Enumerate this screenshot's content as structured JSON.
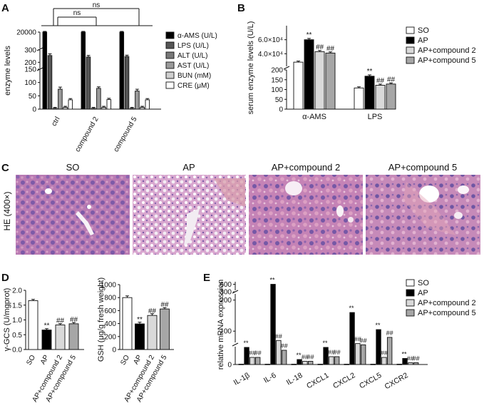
{
  "colors": {
    "so": "#ffffff",
    "ap": "#000000",
    "ap_c2": "#d9d9d9",
    "ap_c5": "#a6a6a6",
    "alt": "#777777",
    "ast": "#9a9a9a",
    "bun": "#cfcfcf",
    "he_base": "#c58ab8",
    "he_dark": "#6a4a98"
  },
  "chart_data": [
    {
      "panel": "A",
      "type": "bar",
      "ylabel": "enzyme levels",
      "categories": [
        "ctrl",
        "compound 2",
        "compound 5"
      ],
      "axis_segments": [
        {
          "range": [
            0,
            150
          ],
          "ticks": [
            "0",
            "50",
            "100",
            "150"
          ]
        },
        {
          "range": [
            150,
            300
          ],
          "ticks": [
            "200",
            "300"
          ]
        },
        {
          "range": [
            300,
            20000
          ],
          "ticks": [
            "20000"
          ]
        }
      ],
      "series": [
        {
          "name": "α-AMS (U/L)",
          "color": "#000000",
          "values": [
            20000,
            20000,
            20000
          ],
          "errors": [
            500,
            500,
            500
          ]
        },
        {
          "name": "LPS (U/L)",
          "color": "#555555",
          "values": [
            255,
            243,
            247
          ],
          "errors": [
            8,
            7,
            5
          ]
        },
        {
          "name": "ALT (U/L)",
          "color": "#777777",
          "values": [
            3,
            3,
            3
          ],
          "errors": [
            1,
            1,
            1
          ]
        },
        {
          "name": "AST (U/L)",
          "color": "#9a9a9a",
          "values": [
            75,
            78,
            68
          ],
          "errors": [
            5,
            3,
            4
          ]
        },
        {
          "name": "BUN (mM)",
          "color": "#cfcfcf",
          "values": [
            7,
            7,
            7
          ],
          "errors": [
            1,
            1,
            1
          ]
        },
        {
          "name": "CRE (μM)",
          "color": "#ffffff",
          "values": [
            35,
            36,
            35
          ],
          "errors": [
            2,
            2,
            2
          ]
        }
      ],
      "significance": [
        {
          "label": "ns",
          "from": "ctrl",
          "to": "compound 2"
        },
        {
          "label": "ns",
          "from": "ctrl",
          "to": "compound 5"
        }
      ]
    },
    {
      "panel": "B",
      "type": "bar",
      "ylabel": "serum enzyme levels (U/L)",
      "categories": [
        "α-AMS",
        "LPS"
      ],
      "axis_segments": [
        {
          "range": [
            0,
            200
          ],
          "ticks": [
            "0",
            "50",
            "100",
            "150",
            "200"
          ]
        },
        {
          "range": [
            20000,
            80000
          ],
          "ticks": [
            "4.0×10⁴",
            "6.0×10⁴"
          ]
        }
      ],
      "series": [
        {
          "name": "SO",
          "color": "#ffffff",
          "values": [
            28000,
            108
          ],
          "errors": [
            500,
            2
          ]
        },
        {
          "name": "AP",
          "color": "#000000",
          "values": [
            60000,
            168
          ],
          "errors": [
            800,
            3
          ],
          "marks": [
            "**",
            "**"
          ]
        },
        {
          "name": "AP+compound 2",
          "color": "#d9d9d9",
          "values": [
            43000,
            122
          ],
          "errors": [
            600,
            2
          ],
          "marks": [
            "##",
            "##"
          ]
        },
        {
          "name": "AP+compound 5",
          "color": "#a6a6a6",
          "values": [
            41000,
            128
          ],
          "errors": [
            600,
            2
          ],
          "marks": [
            "##",
            "##"
          ]
        }
      ]
    },
    {
      "panel": "D-left",
      "type": "bar",
      "ylabel": "γ-GCS (U/mgprot)",
      "ylim": [
        0,
        2.0
      ],
      "ticks": [
        "0.0",
        "0.5",
        "1.0",
        "1.5",
        "2.0"
      ],
      "categories": [
        "SO",
        "AP",
        "AP+compound 2",
        "AP+compound 5"
      ],
      "values": [
        1.65,
        0.66,
        0.83,
        0.87
      ],
      "errors": [
        0.02,
        0.02,
        0.02,
        0.02
      ],
      "colors": [
        "#ffffff",
        "#000000",
        "#d9d9d9",
        "#a6a6a6"
      ],
      "marks": [
        "",
        "**",
        "##",
        "##"
      ]
    },
    {
      "panel": "D-right",
      "type": "bar",
      "ylabel": "GSH (μg/g fresh weight)",
      "ylim": [
        0,
        1000
      ],
      "ticks": [
        "0",
        "200",
        "400",
        "600",
        "800",
        "1000"
      ],
      "categories": [
        "SO",
        "AP",
        "AP+compound 2",
        "AP+compound 5"
      ],
      "values": [
        800,
        395,
        525,
        625
      ],
      "errors": [
        15,
        15,
        15,
        10
      ],
      "colors": [
        "#ffffff",
        "#000000",
        "#d9d9d9",
        "#a6a6a6"
      ],
      "marks": [
        "",
        "**",
        "##",
        "##"
      ]
    },
    {
      "panel": "E",
      "type": "bar",
      "ylabel": "relative mRNA expression",
      "categories": [
        "IL-1β",
        "IL-6",
        "IL-18",
        "CXCL1",
        "CXCL2",
        "CXCL5",
        "CXCR2"
      ],
      "axis_segments": [
        {
          "range": [
            0,
            50
          ],
          "ticks": [
            "0"
          ]
        },
        {
          "range": [
            50,
            220
          ],
          "ticks": [
            "100",
            "200"
          ]
        },
        {
          "range": [
            220,
            700
          ],
          "ticks": [
            "300",
            "600"
          ]
        }
      ],
      "legend": [
        "SO",
        "AP",
        "AP+compound 2",
        "AP+compound 5"
      ],
      "series": [
        {
          "name": "SO",
          "color": "#ffffff",
          "values": [
            1,
            1,
            1,
            1,
            1,
            1,
            1
          ]
        },
        {
          "name": "AP",
          "color": "#000000",
          "values": [
            48,
            600,
            14,
            48,
            160,
            105,
            17
          ],
          "marks": [
            "**",
            "**",
            "**",
            "**",
            "**",
            "**",
            "**"
          ]
        },
        {
          "name": "AP+compound 2",
          "color": "#d9d9d9",
          "values": [
            20,
            70,
            9,
            22,
            60,
            20,
            5
          ],
          "marks": [
            "##",
            "##",
            "##",
            "##",
            "##",
            "##",
            "##"
          ]
        },
        {
          "name": "AP+compound 5",
          "color": "#a6a6a6",
          "values": [
            20,
            40,
            9,
            22,
            56,
            80,
            5
          ],
          "marks": [
            "##",
            "##",
            "##",
            "##",
            "##",
            "##",
            "##"
          ]
        }
      ]
    }
  ],
  "panel_letters": {
    "a": "A",
    "b": "B",
    "c": "C",
    "d": "D",
    "e": "E"
  },
  "panel_c": {
    "ylabel": "HE (400×)",
    "titles": [
      "SO",
      "AP",
      "AP+compound 2",
      "AP+compound 5"
    ]
  }
}
